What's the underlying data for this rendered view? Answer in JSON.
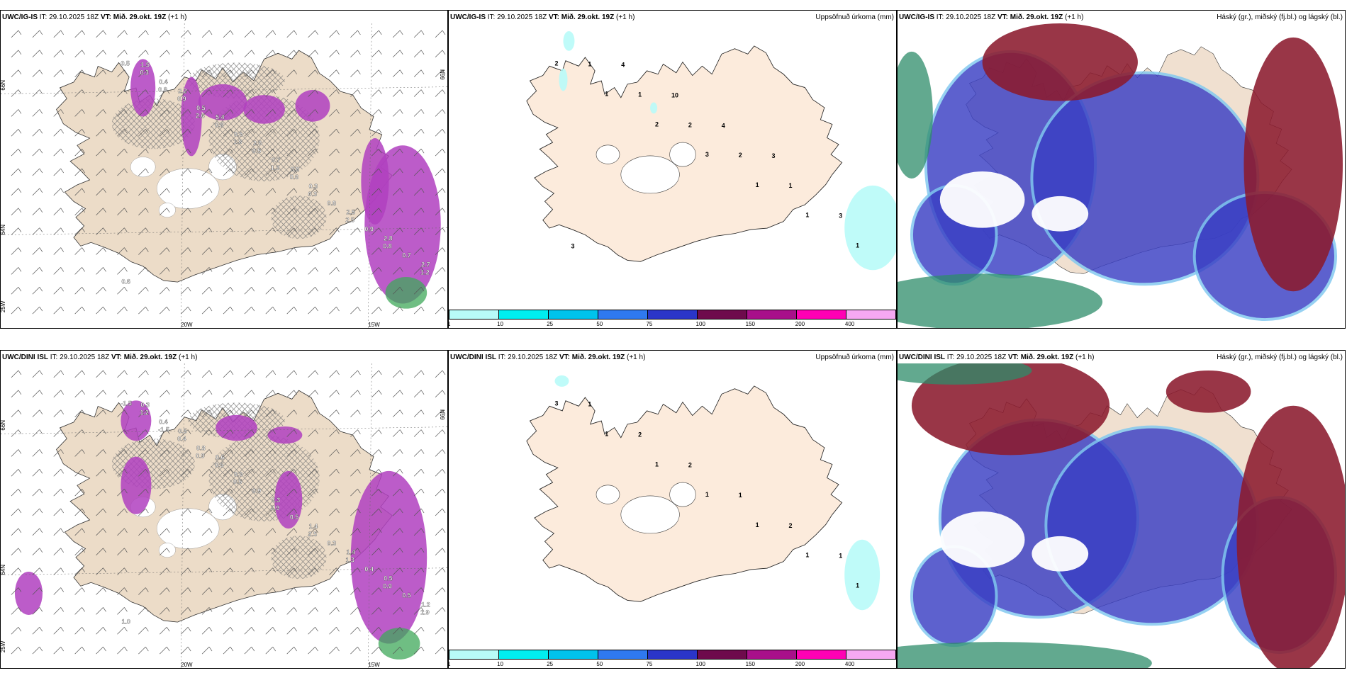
{
  "rows": [
    {
      "panels": [
        {
          "type": "wind",
          "model": "UWC/IG-IS",
          "it_label": "IT:",
          "init": "29.10.2025 18Z",
          "vt_label": "VT:",
          "valid": "Mið. 29.okt. 19Z",
          "lead": "(+1 h)",
          "title_right": "",
          "axis_labels": {
            "lat_left_top": "66N",
            "lat_left_mid": "64N",
            "lat_left_bot": "25W",
            "lat_right": "66N",
            "lon_a": "20W",
            "lon_b": "15W"
          },
          "value_labels": [
            "0.5",
            "0.8",
            "2.6",
            "1.8",
            "1.3",
            "0.3",
            "2.5",
            "0.8",
            "1.2",
            "0.3",
            "0.9",
            "0.8",
            "0.5",
            "0.6",
            "0.8",
            "0.9",
            "0.7",
            "0.6",
            "0.4",
            "0.5",
            "0.5",
            "0.7",
            "0.3",
            "2.5",
            "2.8",
            "2.7",
            "1.5",
            "2.2",
            "5.4",
            "2.6",
            "0.8"
          ]
        },
        {
          "type": "precip",
          "model": "UWC/IG-IS",
          "it_label": "IT:",
          "init": "29.10.2025 18Z",
          "vt_label": "VT:",
          "valid": "Mið. 29.okt. 19Z",
          "lead": "(+1 h)",
          "title_right": "Uppsöfnuð úrkoma (mm)",
          "value_labels": [
            "2",
            "1",
            "2",
            "3",
            "1",
            "1",
            "1",
            "1",
            "1",
            "2",
            "2",
            "1",
            "3",
            "3",
            "4",
            "10",
            "4",
            "3"
          ],
          "colorbar": {
            "colors": [
              "#b8fbf8",
              "#00eef0",
              "#00c3ec",
              "#2f79f0",
              "#2a35c8",
              "#6e0a4c",
              "#a8108a",
              "#ff00b4",
              "#f6a8f2"
            ],
            "ticks": [
              "1",
              "10",
              "25",
              "50",
              "75",
              "100",
              "150",
              "200",
              "400"
            ]
          }
        },
        {
          "type": "cloud",
          "model": "UWC/IG-IS",
          "it_label": "IT:",
          "init": "29.10.2025 18Z",
          "vt_label": "VT:",
          "valid": "Mið. 29.okt. 19Z",
          "lead": "(+1 h)",
          "title_right": "Háský (gr.), miðský (fj.bl.) og lágský (bl.)",
          "colors": {
            "high": "#2e8c6a",
            "mid": "#8b1a2e",
            "low": "#3a3fc4",
            "low_edge": "#7fc8f0",
            "land": "#f0e0d0"
          }
        }
      ]
    },
    {
      "panels": [
        {
          "type": "wind",
          "model": "UWC/DINI ISL",
          "it_label": "IT:",
          "init": "29.10.2025 18Z",
          "vt_label": "VT:",
          "valid": "Mið. 29.okt. 19Z",
          "lead": "(+1 h)",
          "title_right": "",
          "axis_labels": {
            "lat_left_top": "66N",
            "lat_left_mid": "64N",
            "lat_left_bot": "25W",
            "lat_right": "66N",
            "lon_a": "20W",
            "lon_b": "15W"
          },
          "value_labels": [
            "-1.5",
            "-1.5",
            "0.9",
            "0.5",
            "2.9",
            "2.5",
            "1.3",
            "0.9",
            "1.9",
            "1.2",
            "0.4",
            "0.5",
            "0.9",
            "0.5",
            "0.3",
            "0.4",
            "0.5",
            "1.0",
            "0.4",
            "0.8",
            "0.9",
            "0.3",
            "1.4",
            "1.4",
            "0.5",
            "1.2",
            "0.3",
            "0.5",
            "0.6"
          ]
        },
        {
          "type": "precip",
          "model": "UWC/DINI ISL",
          "it_label": "IT:",
          "init": "29.10.2025 18Z",
          "vt_label": "VT:",
          "valid": "Mið. 29.okt. 19Z",
          "lead": "(+1 h)",
          "title_right": "Uppsöfnuð úrkoma (mm)",
          "value_labels": [
            "3",
            "1",
            "1",
            "1",
            "1",
            "1",
            "1",
            "1",
            "2",
            "2",
            "1",
            "2",
            "1"
          ],
          "colorbar": {
            "colors": [
              "#b8fbf8",
              "#00eef0",
              "#00c3ec",
              "#2f79f0",
              "#2a35c8",
              "#6e0a4c",
              "#a8108a",
              "#ff00b4",
              "#f6a8f2"
            ],
            "ticks": [
              "1",
              "10",
              "25",
              "50",
              "75",
              "100",
              "150",
              "200",
              "400"
            ]
          }
        },
        {
          "type": "cloud",
          "model": "UWC/DINI ISL",
          "it_label": "IT:",
          "init": "29.10.2025 18Z",
          "vt_label": "VT:",
          "valid": "Mið. 29.okt. 19Z",
          "lead": "(+1 h)",
          "title_right": "Háský (gr.), miðský (fj.bl.) og lágský (bl.)",
          "colors": {
            "high": "#2e8c6a",
            "mid": "#8b1a2e",
            "low": "#3a3fc4",
            "low_edge": "#7fc8f0",
            "land": "#f0e0d0"
          }
        }
      ]
    }
  ]
}
